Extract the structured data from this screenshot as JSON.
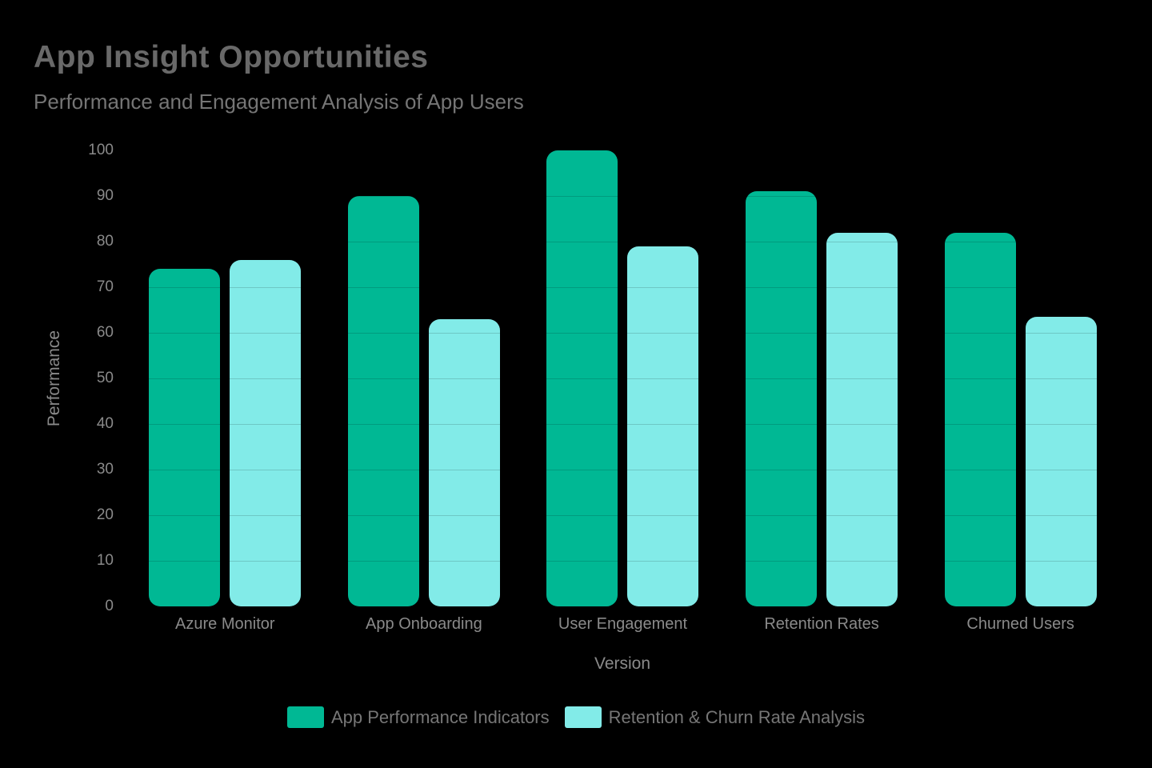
{
  "page": {
    "background": "#000000"
  },
  "header": {
    "title": "App Insight Opportunities",
    "subtitle": "Performance and Engagement Analysis of App Users"
  },
  "chart_data": {
    "type": "bar",
    "title": "App Insight Opportunities",
    "subtitle": "Performance and Engagement Analysis of App Users",
    "categories": [
      "Azure Monitor",
      "App Onboarding",
      "User Engagement",
      "Retention Rates",
      "Churned Users"
    ],
    "series": [
      {
        "name": "App Performance Indicators",
        "color": "#00b894",
        "values": [
          74,
          90,
          100,
          91,
          82
        ]
      },
      {
        "name": "Retention & Churn Rate Analysis",
        "color": "#82ebe8",
        "values": [
          76,
          63,
          79,
          82,
          63.5
        ]
      }
    ],
    "xlabel": "Version",
    "ylabel": "Performance",
    "ylim": [
      0,
      100
    ],
    "yticks": [
      0,
      10,
      20,
      30,
      40,
      50,
      60,
      70,
      80,
      90,
      100
    ],
    "grid": true,
    "gridline_color": "rgba(0,0,0,0.15)",
    "legend_position": "bottom",
    "text_colors": {
      "title": "#696969",
      "subtitle": "#757575",
      "axis": "#8a8a8a",
      "legend": "#767676"
    }
  }
}
